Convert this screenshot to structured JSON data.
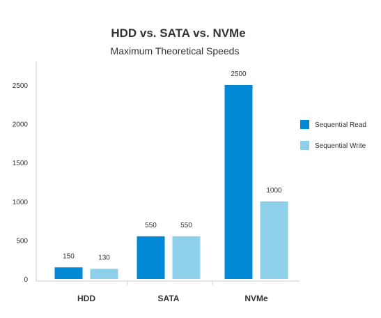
{
  "chart_data": {
    "type": "bar",
    "title": "HDD vs. SATA vs. NVMe",
    "subtitle": "Maximum Theoretical Speeds",
    "xlabel": "",
    "ylabel": "",
    "categories": [
      "HDD",
      "SATA",
      "NVMe"
    ],
    "series": [
      {
        "name": "Sequential Read",
        "values": [
          150,
          550,
          2500
        ],
        "color": "#0088d4"
      },
      {
        "name": "Sequential Write",
        "values": [
          130,
          550,
          1000
        ],
        "color": "#8ed0ea"
      }
    ],
    "ylim": [
      0,
      2500
    ],
    "yticks": [
      0,
      500,
      1000,
      1500,
      2000,
      2500
    ],
    "data_labels": true,
    "grid": false,
    "legend_position": "right"
  }
}
